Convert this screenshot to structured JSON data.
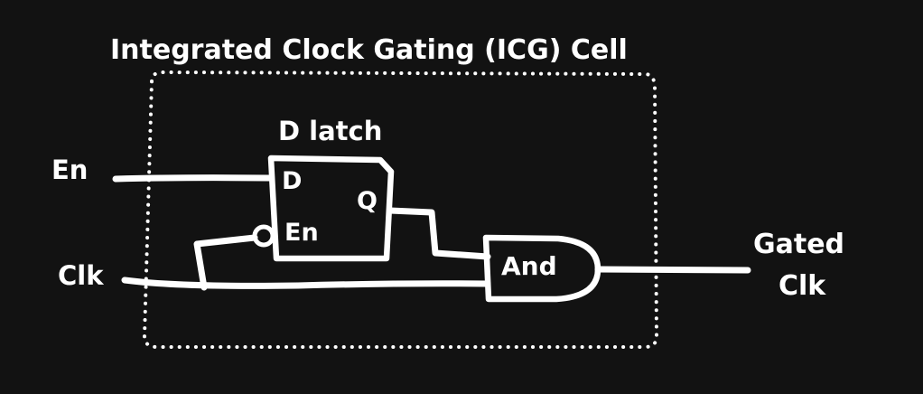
{
  "title": "Integrated Clock Gating (ICG) Cell",
  "latch": {
    "title": "D latch",
    "pin_d": "D",
    "pin_q": "Q",
    "pin_en": "En"
  },
  "gate": {
    "label": "And"
  },
  "inputs": {
    "en": "En",
    "clk": "Clk"
  },
  "output": {
    "line1": "Gated",
    "line2": "Clk"
  },
  "colors": {
    "background": "#121212",
    "stroke": "#ffffff"
  }
}
